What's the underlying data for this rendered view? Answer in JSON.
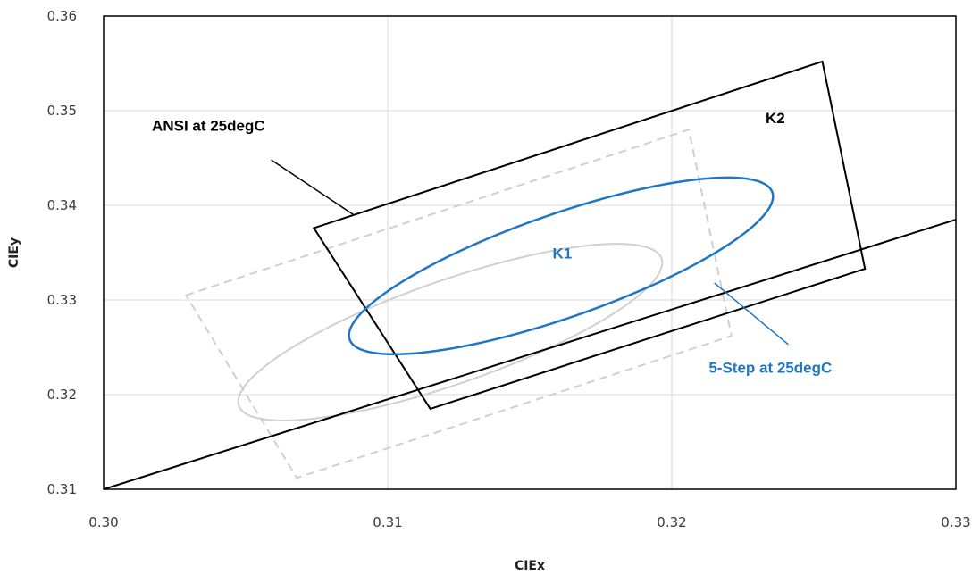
{
  "chart_data": {
    "type": "scatter",
    "title": "",
    "xlabel": "CIEx",
    "ylabel": "CIEy",
    "xlim": [
      0.3,
      0.33
    ],
    "ylim": [
      0.31,
      0.36
    ],
    "x_ticks": [
      0.3,
      0.31,
      0.32,
      0.33
    ],
    "x_tick_labels": [
      "0.30",
      "0.31",
      "0.32",
      "0.33"
    ],
    "y_ticks": [
      0.31,
      0.32,
      0.33,
      0.34,
      0.35,
      0.36
    ],
    "y_tick_labels": [
      "0.31",
      "0.32",
      "0.33",
      "0.34",
      "0.35",
      "0.36"
    ],
    "grid": true,
    "colors": {
      "black": "#000000",
      "blue": "#1f77c4",
      "gray": "#d0d0d0",
      "grid": "#d9d9d9"
    },
    "shapes": [
      {
        "name": "K2",
        "kind": "polygon",
        "style": "solid-black",
        "points": [
          [
            0.3074,
            0.3376
          ],
          [
            0.3253,
            0.3552
          ],
          [
            0.3268,
            0.3333
          ],
          [
            0.3115,
            0.3185
          ]
        ]
      },
      {
        "name": "K1",
        "kind": "polygon",
        "style": "dashed-gray",
        "points": [
          [
            0.3029,
            0.3305
          ],
          [
            0.3206,
            0.348
          ],
          [
            0.3221,
            0.3262
          ],
          [
            0.3068,
            0.3112
          ]
        ]
      },
      {
        "name": "5-Step at 25degC",
        "kind": "ellipse",
        "style": "solid-blue",
        "center": [
          0.3161,
          0.3336
        ],
        "semi_axes": [
          0.01133,
          0.0038
        ],
        "angle_deg": 53
      },
      {
        "name": "ellipse-gray",
        "kind": "ellipse",
        "style": "solid-gray",
        "center": [
          0.3122,
          0.3266
        ],
        "semi_axes": [
          0.01133,
          0.0038
        ],
        "angle_deg": 53
      },
      {
        "name": "line",
        "kind": "line",
        "style": "solid-black",
        "points": [
          [
            0.3,
            0.31
          ],
          [
            0.33,
            0.3385
          ]
        ]
      }
    ],
    "annotations": [
      {
        "id": "ansi",
        "text": "ANSI at 25degC",
        "color": "#000000",
        "at": [
          0.3017,
          0.3479
        ],
        "arrow_from": [
          0.3059,
          0.3448
        ],
        "arrow_to": [
          0.3088,
          0.339
        ]
      },
      {
        "id": "k2",
        "text": "K2",
        "color": "#000000",
        "at": [
          0.3233,
          0.3487
        ]
      },
      {
        "id": "k1",
        "text": "K1",
        "color": "#1f77c4",
        "at": [
          0.3158,
          0.3344
        ]
      },
      {
        "id": "fivestep",
        "text": "5-Step at 25degC",
        "color": "#1f77c4",
        "at": [
          0.3213,
          0.3223
        ],
        "arrow_from": [
          0.3241,
          0.3253
        ],
        "arrow_to": [
          0.3215,
          0.3318
        ]
      }
    ]
  }
}
